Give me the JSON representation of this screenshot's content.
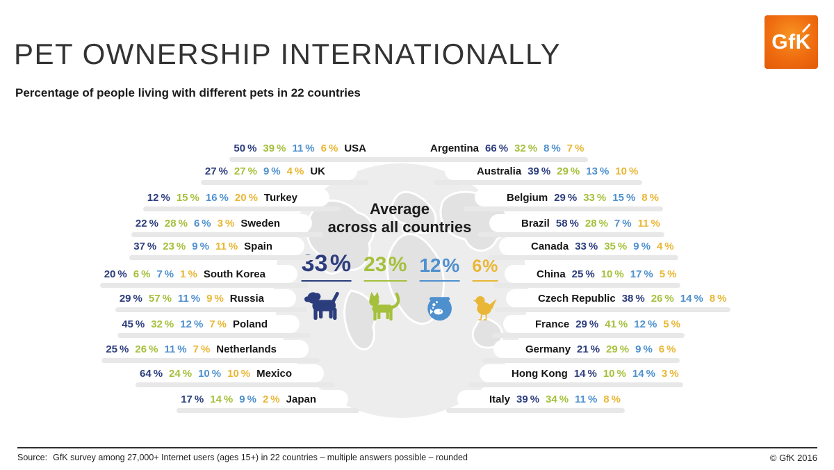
{
  "header": {
    "title": "PET OWNERSHIP INTERNATIONALLY",
    "subtitle": "Percentage of people living with different pets in 22 countries",
    "logo_text": "GfK"
  },
  "center": {
    "heading_line1": "Average",
    "heading_line2": "across all countries",
    "stats": [
      {
        "pet": "dog",
        "display": "33 %",
        "value": 33,
        "color": "#2c3d7d"
      },
      {
        "pet": "cat",
        "display": "23 %",
        "value": 23,
        "color": "#a5c03c"
      },
      {
        "pet": "fish",
        "display": "12 %",
        "value": 12,
        "color": "#4e90ce"
      },
      {
        "pet": "bird",
        "display": "6 %",
        "value": 6,
        "color": "#e9b735"
      }
    ]
  },
  "legend_colors": {
    "dog": "#2c3d7d",
    "cat": "#a5c03c",
    "fish": "#4e90ce",
    "bird": "#e9b735"
  },
  "footer": {
    "source_label": "Source:",
    "source": "GfK survey among 27,000+ Internet users (ages 15+) in 22 countries – multiple answers possible – rounded",
    "copyright": "© GfK 2016"
  },
  "chart_data": {
    "type": "pictogram-table",
    "title": "PET OWNERSHIP INTERNATIONALLY",
    "subtitle": "Percentage of people living with different pets in 22 countries",
    "categories": [
      "dog",
      "cat",
      "fish",
      "bird"
    ],
    "unit": "%",
    "average": {
      "label": "Average across all countries",
      "values": [
        33,
        23,
        12,
        6
      ]
    },
    "left_countries": [
      {
        "name": "USA",
        "values": [
          50,
          39,
          11,
          6
        ]
      },
      {
        "name": "UK",
        "values": [
          27,
          27,
          9,
          4
        ]
      },
      {
        "name": "Turkey",
        "values": [
          12,
          15,
          16,
          20
        ]
      },
      {
        "name": "Sweden",
        "values": [
          22,
          28,
          6,
          3
        ]
      },
      {
        "name": "Spain",
        "values": [
          37,
          23,
          9,
          11
        ]
      },
      {
        "name": "South Korea",
        "values": [
          20,
          6,
          7,
          1
        ]
      },
      {
        "name": "Russia",
        "values": [
          29,
          57,
          11,
          9
        ]
      },
      {
        "name": "Poland",
        "values": [
          45,
          32,
          12,
          7
        ]
      },
      {
        "name": "Netherlands",
        "values": [
          25,
          26,
          11,
          7
        ]
      },
      {
        "name": "Mexico",
        "values": [
          64,
          24,
          10,
          10
        ]
      },
      {
        "name": "Japan",
        "values": [
          17,
          14,
          9,
          2
        ]
      }
    ],
    "right_countries": [
      {
        "name": "Argentina",
        "values": [
          66,
          32,
          8,
          7
        ]
      },
      {
        "name": "Australia",
        "values": [
          39,
          29,
          13,
          10
        ]
      },
      {
        "name": "Belgium",
        "values": [
          29,
          33,
          15,
          8
        ]
      },
      {
        "name": "Brazil",
        "values": [
          58,
          28,
          7,
          11
        ]
      },
      {
        "name": "Canada",
        "values": [
          33,
          35,
          9,
          4
        ]
      },
      {
        "name": "China",
        "values": [
          25,
          10,
          17,
          5
        ]
      },
      {
        "name": "Czech Republic",
        "values": [
          38,
          26,
          14,
          8
        ]
      },
      {
        "name": "France",
        "values": [
          29,
          41,
          12,
          5
        ]
      },
      {
        "name": "Germany",
        "values": [
          21,
          29,
          9,
          6
        ]
      },
      {
        "name": "Hong Kong",
        "values": [
          14,
          10,
          14,
          3
        ]
      },
      {
        "name": "Italy",
        "values": [
          39,
          34,
          11,
          8
        ]
      }
    ]
  }
}
